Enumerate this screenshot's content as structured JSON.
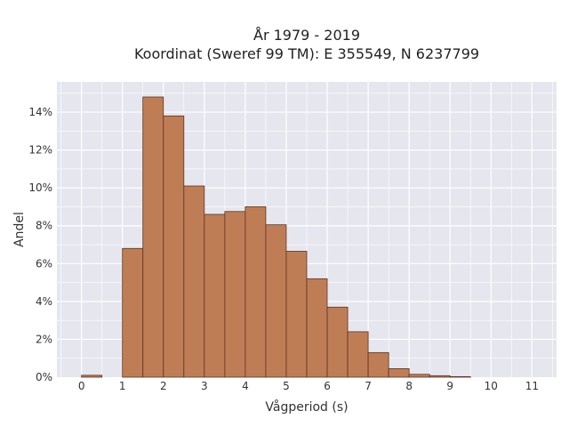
{
  "chart_data": {
    "type": "bar",
    "title_lines": [
      "År 1979 - 2019",
      "Koordinat (Sweref 99 TM): E 355549, N 6237799"
    ],
    "xlabel": "Vågperiod (s)",
    "ylabel": "Andel",
    "bin_width": 0.5,
    "bin_starts": [
      0,
      1,
      1.5,
      2,
      2.5,
      3,
      3.5,
      4,
      4.5,
      5,
      5.5,
      6,
      6.5,
      7,
      7.5,
      8,
      8.5,
      9
    ],
    "values": [
      0.1,
      6.8,
      14.8,
      13.8,
      10.1,
      8.6,
      8.75,
      9.0,
      8.05,
      6.65,
      5.2,
      3.7,
      2.4,
      1.3,
      0.45,
      0.15,
      0.08,
      0.03
    ],
    "xlim": [
      -0.6,
      11.6
    ],
    "ylim": [
      0,
      15.6
    ],
    "x_ticks": [
      0,
      1,
      2,
      3,
      4,
      5,
      6,
      7,
      8,
      9,
      10,
      11
    ],
    "y_ticks": [
      0,
      2,
      4,
      6,
      8,
      10,
      12,
      14
    ],
    "y_tick_suffix": "%",
    "grid": true,
    "colors": {
      "bar_fill": "#bf7d56",
      "bar_edge": "#5a3520",
      "plot_bg": "#e6e6ef",
      "grid": "#ffffff"
    }
  }
}
